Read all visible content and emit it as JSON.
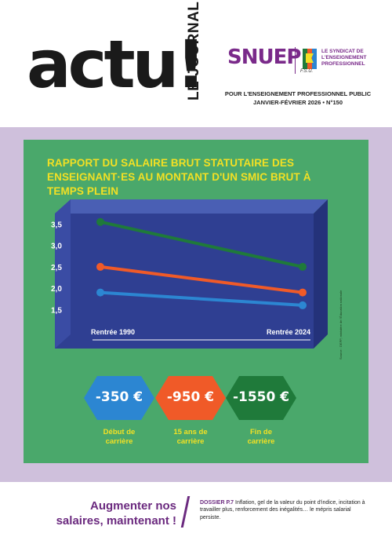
{
  "header": {
    "masthead": "actu!",
    "masthead_sub": "LE JOURNAL",
    "brand": "SNUEP",
    "fsu_label": "F.S.U.",
    "tagline": "LE SYNDICAT DE L'ENSEIGNEMENT PROFESSIONNEL",
    "publication": "POUR L'ENSEIGNEMENT PROFESSIONNEL PUBLIC",
    "issue": "JANVIER-FÉVRIER 2026 • N°150"
  },
  "colors": {
    "purple": "#7a2a8a",
    "lilac": "#cfc0dc",
    "green": "#4aa86b",
    "navy": "#2f3f92",
    "yellow": "#f2e024",
    "line_green": "#1f7a3a",
    "line_orange": "#f05a28",
    "line_blue": "#2c86d2"
  },
  "chart_data": {
    "type": "line",
    "title": "RAPPORT DU SALAIRE BRUT STATUTAIRE DES ENSEIGNANT·ES AU MONTANT D'UN SMIC BRUT À TEMPS PLEIN",
    "categories": [
      "Rentrée 1990",
      "Rentrée 2024"
    ],
    "y_ticks": [
      "3,5",
      "3,0",
      "2,5",
      "2,0",
      "1,5"
    ],
    "ylim": [
      1.25,
      3.6
    ],
    "series": [
      {
        "values": [
          3.55,
          2.5
        ],
        "color": "#1f7a3a"
      },
      {
        "values": [
          2.5,
          1.9
        ],
        "color": "#f05a28"
      },
      {
        "values": [
          1.9,
          1.6
        ],
        "color": "#2c86d2"
      }
    ],
    "source": "Source : DEPP, ministère de l'Éducation nationale",
    "grid": false
  },
  "hexagons": [
    {
      "value": "-350 €",
      "caption_1": "Début de",
      "caption_2": "carrière",
      "color": "#2c86d2"
    },
    {
      "value": "-950 €",
      "caption_1": "15 ans de",
      "caption_2": "carrière",
      "color": "#f05a28"
    },
    {
      "value": "-1550 €",
      "caption_1": "Fin de",
      "caption_2": "carrière",
      "color": "#1f7a3a"
    }
  ],
  "footer": {
    "headline_1": "Augmenter nos",
    "headline_2": "salaires, maintenant !",
    "dossier_label": "DOSSIER P.7",
    "dossier_text": "Inflation, gel de la valeur du point d'indice, incitation à travailler plus, renforcement des inégalités… le mépris salarial persiste."
  }
}
